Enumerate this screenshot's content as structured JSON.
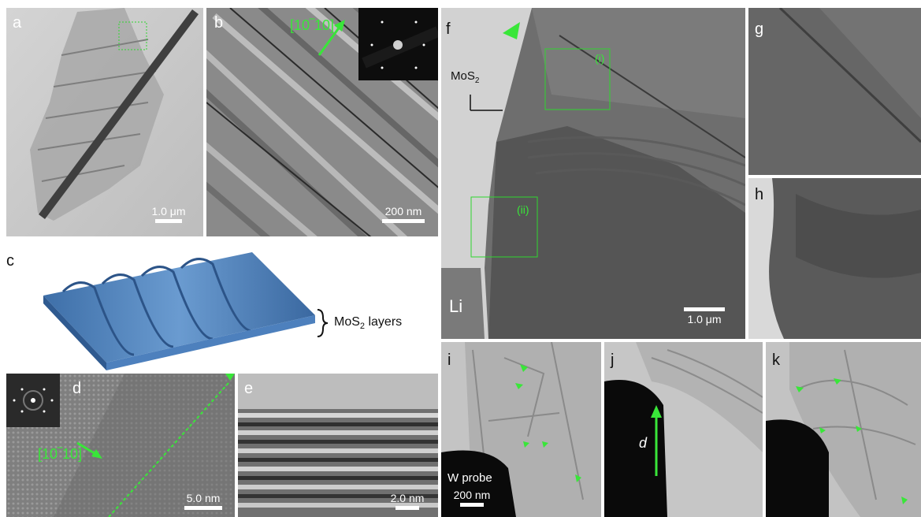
{
  "panels": {
    "a": {
      "label": "a",
      "scale": "1.0 μm"
    },
    "b": {
      "label": "b",
      "scale": "200 nm",
      "direction": "[10‾10]"
    },
    "c": {
      "label": "c",
      "caption_prefix": "MoS",
      "caption_sub": "2",
      "caption_suffix": " layers"
    },
    "d": {
      "label": "d",
      "scale": "5.0 nm",
      "direction": "[10‾10]"
    },
    "e": {
      "label": "e",
      "scale": "2.0 nm"
    },
    "f": {
      "label": "f",
      "scale": "1.0 μm",
      "mos2_prefix": "MoS",
      "mos2_sub": "2",
      "li": "Li",
      "box_i": "(i)",
      "box_ii": "(ii)"
    },
    "g": {
      "label": "g"
    },
    "h": {
      "label": "h"
    },
    "i": {
      "label": "i",
      "probe": "W probe",
      "scale": "200 nm"
    },
    "j": {
      "label": "j",
      "d_label": "d"
    },
    "k": {
      "label": "k"
    }
  },
  "colors": {
    "accent": "#39e639",
    "box": "#2fd62f"
  }
}
